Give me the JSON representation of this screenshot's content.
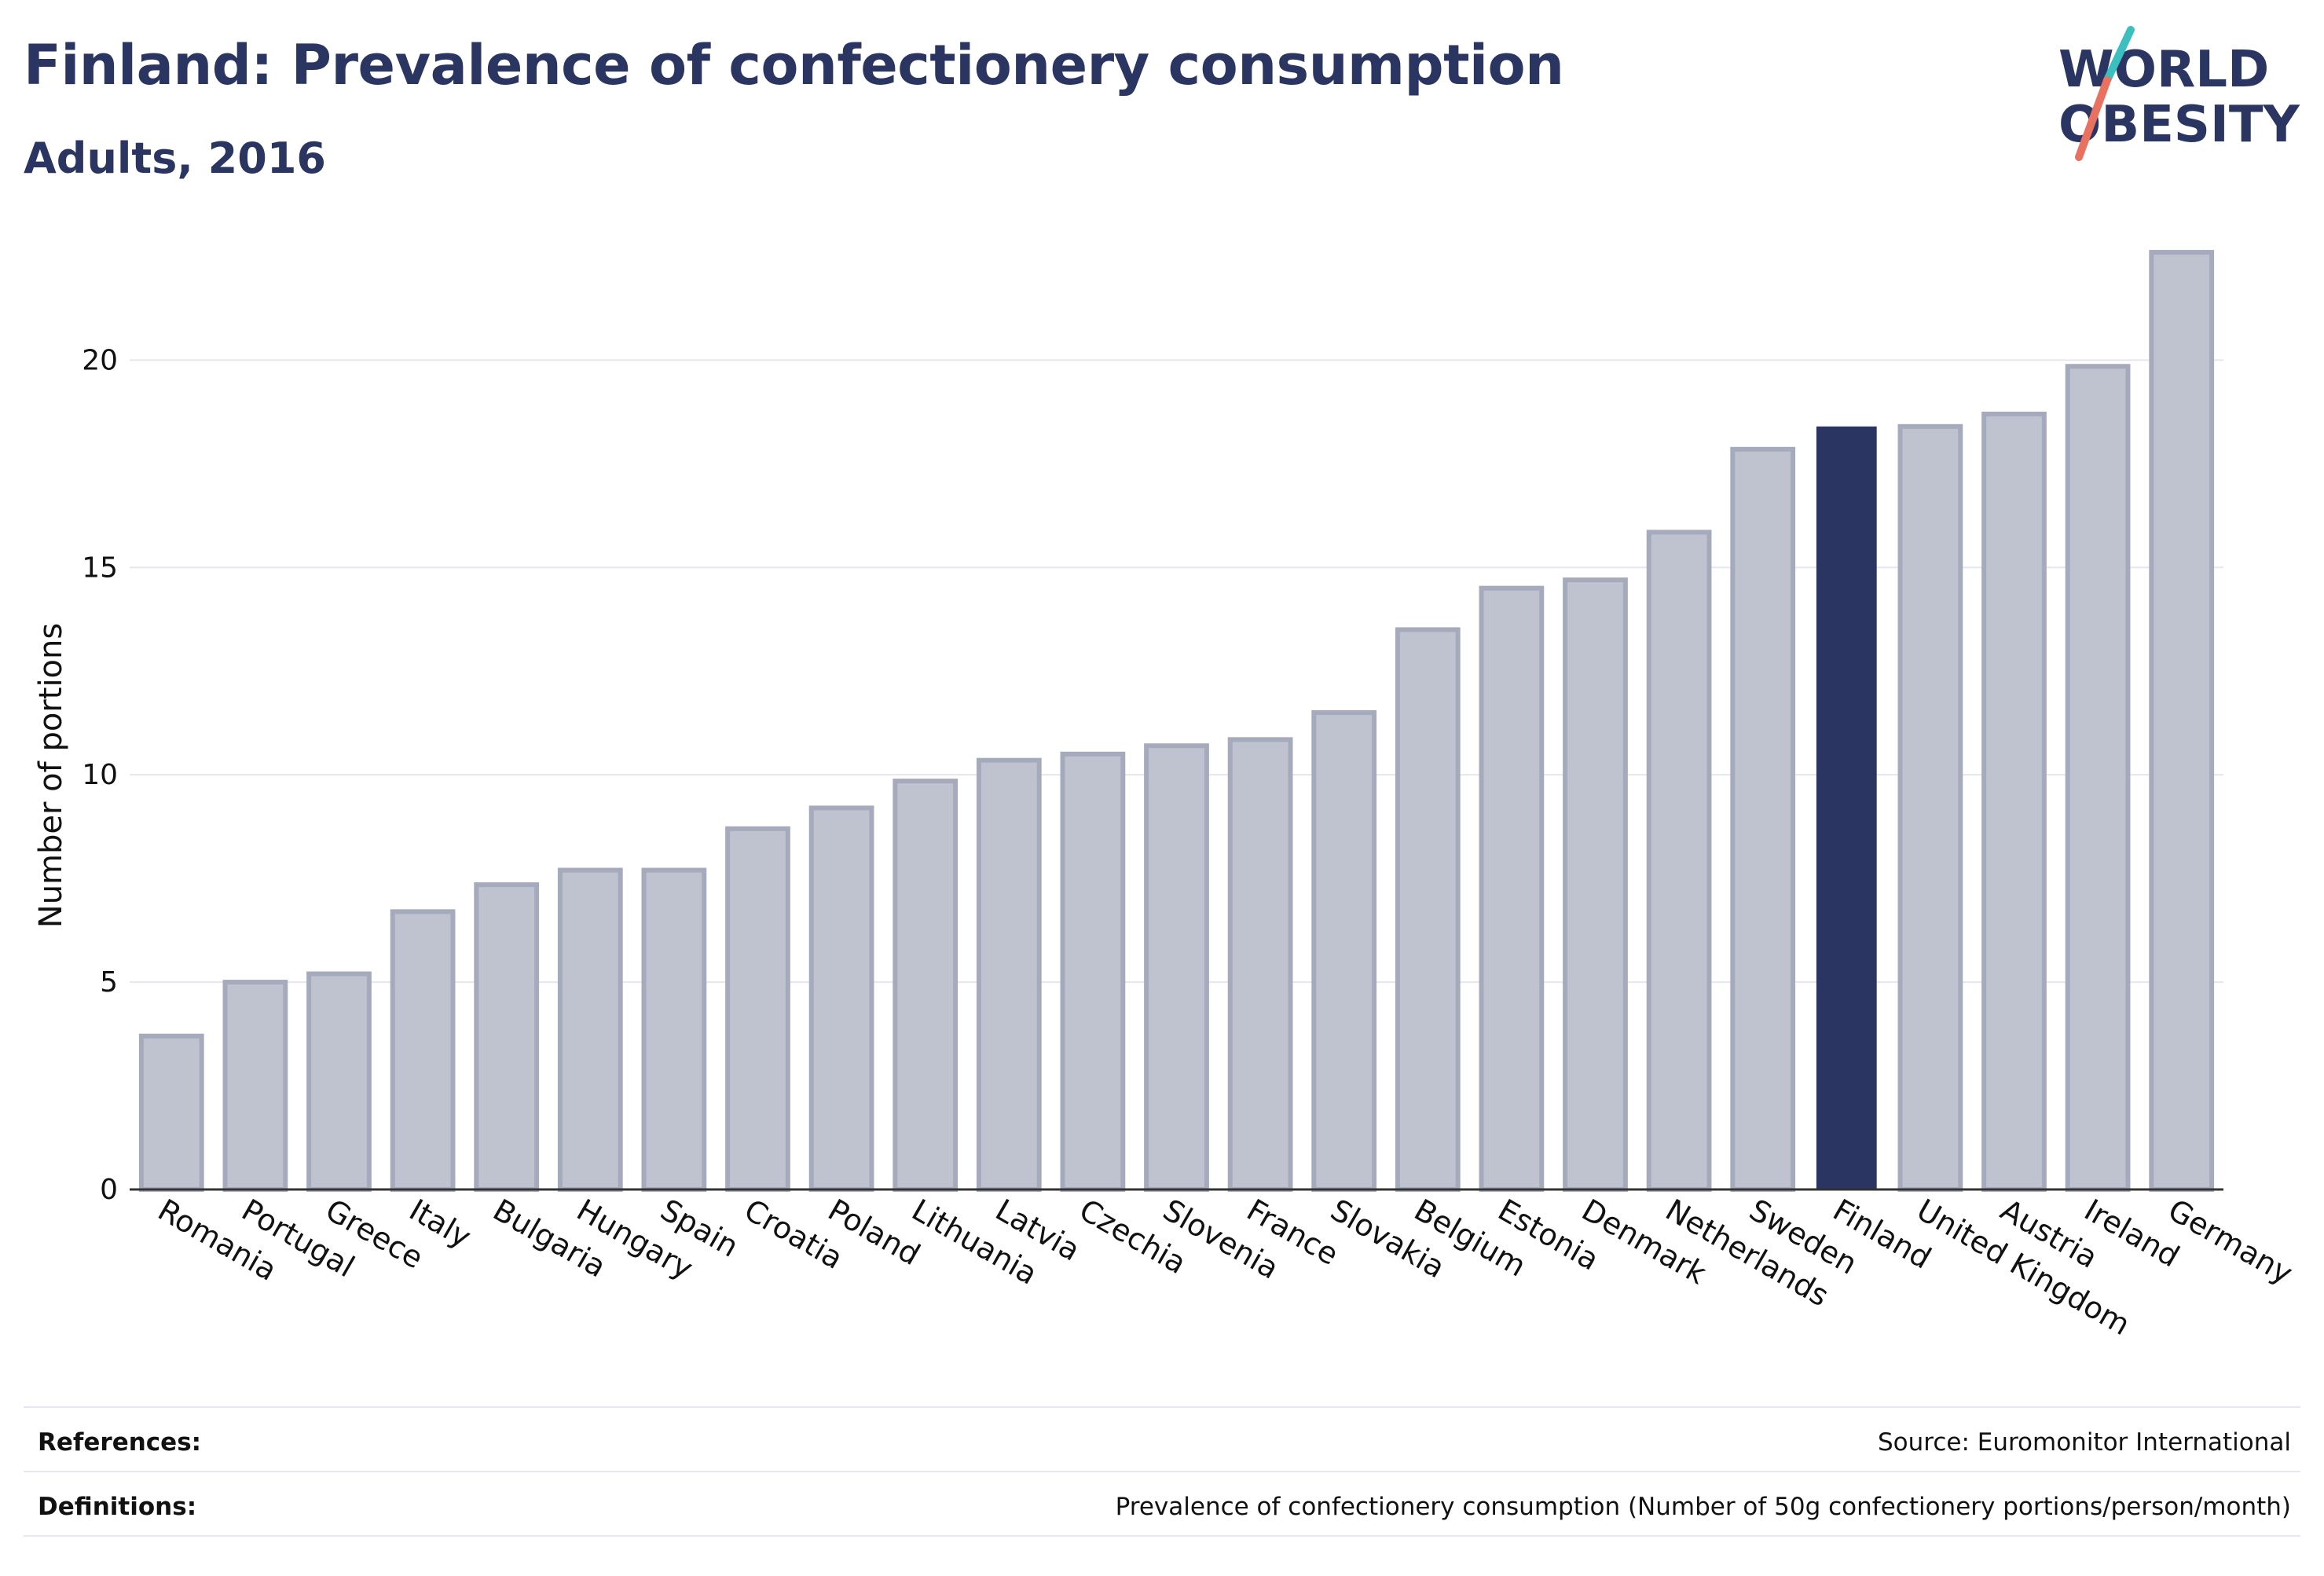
{
  "header": {
    "title": "Finland: Prevalence of confectionery consumption",
    "subtitle": "Adults, 2016"
  },
  "logo": {
    "line1": "WORLD",
    "line2": "OBESITY",
    "colors": {
      "text": "#2b3562",
      "slash_top": "#3bbfbf",
      "slash_bottom": "#e8715f"
    }
  },
  "colors": {
    "bar_fill": "#bfc2cf",
    "bar_stroke": "#a6aabd",
    "highlight_fill": "#2b3562",
    "axis": "#333333",
    "grid": "#e6e6ee"
  },
  "chart_data": {
    "type": "bar",
    "title": "",
    "xlabel": "",
    "ylabel": "Number of portions",
    "ylim": [
      0,
      23
    ],
    "yticks": [
      0,
      5,
      10,
      15,
      20
    ],
    "grid": true,
    "highlight": "Finland",
    "categories": [
      "Romania",
      "Portugal",
      "Greece",
      "Italy",
      "Bulgaria",
      "Hungary",
      "Spain",
      "Croatia",
      "Poland",
      "Lithuania",
      "Latvia",
      "Czechia",
      "Slovenia",
      "France",
      "Slovakia",
      "Belgium",
      "Estonia",
      "Denmark",
      "Netherlands",
      "Sweden",
      "Finland",
      "United Kingdom",
      "Austria",
      "Ireland",
      "Germany"
    ],
    "values": [
      3.7,
      5.0,
      5.2,
      6.7,
      7.35,
      7.7,
      7.7,
      8.7,
      9.2,
      9.85,
      10.35,
      10.5,
      10.7,
      10.85,
      11.5,
      13.5,
      14.5,
      14.7,
      15.85,
      17.85,
      18.4,
      18.4,
      18.7,
      19.85,
      22.6
    ]
  },
  "footer": {
    "references_label": "References:",
    "references_value": "Source: Euromonitor International",
    "definitions_label": "Definitions:",
    "definitions_value": "Prevalence of confectionery consumption (Number of 50g confectionery portions/person/month)"
  }
}
